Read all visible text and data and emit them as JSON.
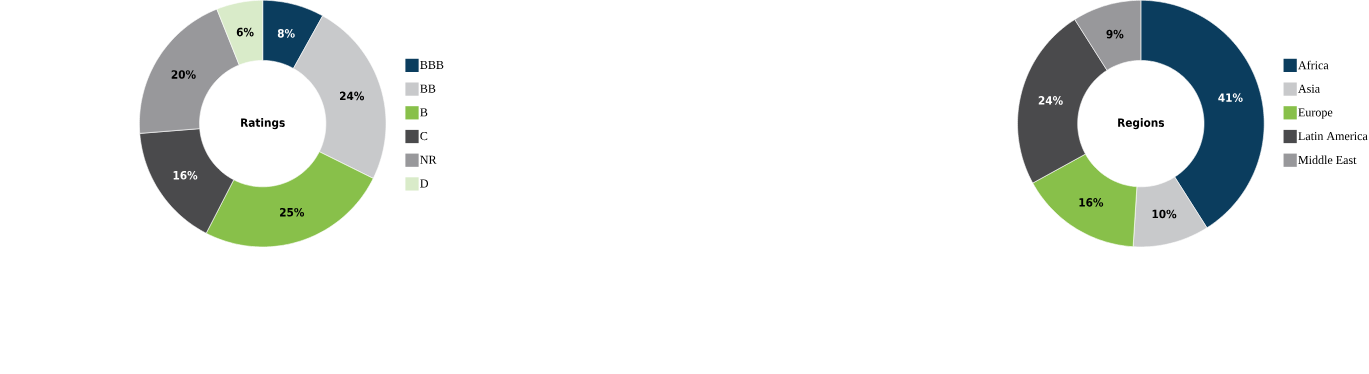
{
  "chart_data": [
    {
      "type": "donut",
      "title": "Ratings",
      "categories": [
        "BBB",
        "BB",
        "B",
        "C",
        "NR",
        "D"
      ],
      "values": [
        8,
        24,
        25,
        16,
        20,
        6
      ],
      "value_labels": [
        "8%",
        "24%",
        "25%",
        "16%",
        "20%",
        "6%"
      ],
      "colors": [
        "#0b3d5e",
        "#c8c9cb",
        "#88c04a",
        "#4a4a4c",
        "#98989b",
        "#d9ebc9"
      ],
      "legend": "right"
    },
    {
      "type": "donut",
      "title": "Regions",
      "categories": [
        "Africa",
        "Asia",
        "Europe",
        "Latin America",
        "Middle East"
      ],
      "values": [
        41,
        10,
        16,
        24,
        9
      ],
      "value_labels": [
        "41%",
        "10%",
        "16%",
        "24%",
        "9%"
      ],
      "colors": [
        "#0b3d5e",
        "#c8c9cb",
        "#88c04a",
        "#4a4a4c",
        "#98989b"
      ],
      "legend": "right"
    }
  ]
}
